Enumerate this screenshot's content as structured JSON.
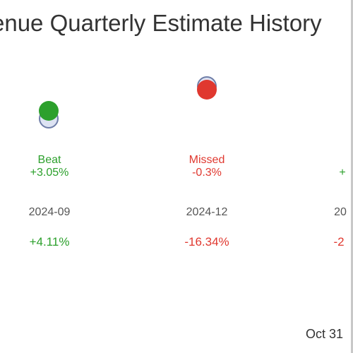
{
  "chart_data": {
    "type": "scatter",
    "title": "enue Quarterly Estimate History",
    "quarters": [
      {
        "period": "2024-09",
        "result": "Beat",
        "surprise": "+3.05%",
        "change": "+4.11%",
        "color": "#2ca02c"
      },
      {
        "period": "2024-12",
        "result": "Missed",
        "surprise": "-0.3%",
        "change": "-16.34%",
        "color": "#e0382f"
      },
      {
        "period": "20",
        "result": "",
        "surprise": "+",
        "change": "-2",
        "color": "#2ca02c"
      }
    ]
  },
  "footer": {
    "date": "Oct 31"
  }
}
